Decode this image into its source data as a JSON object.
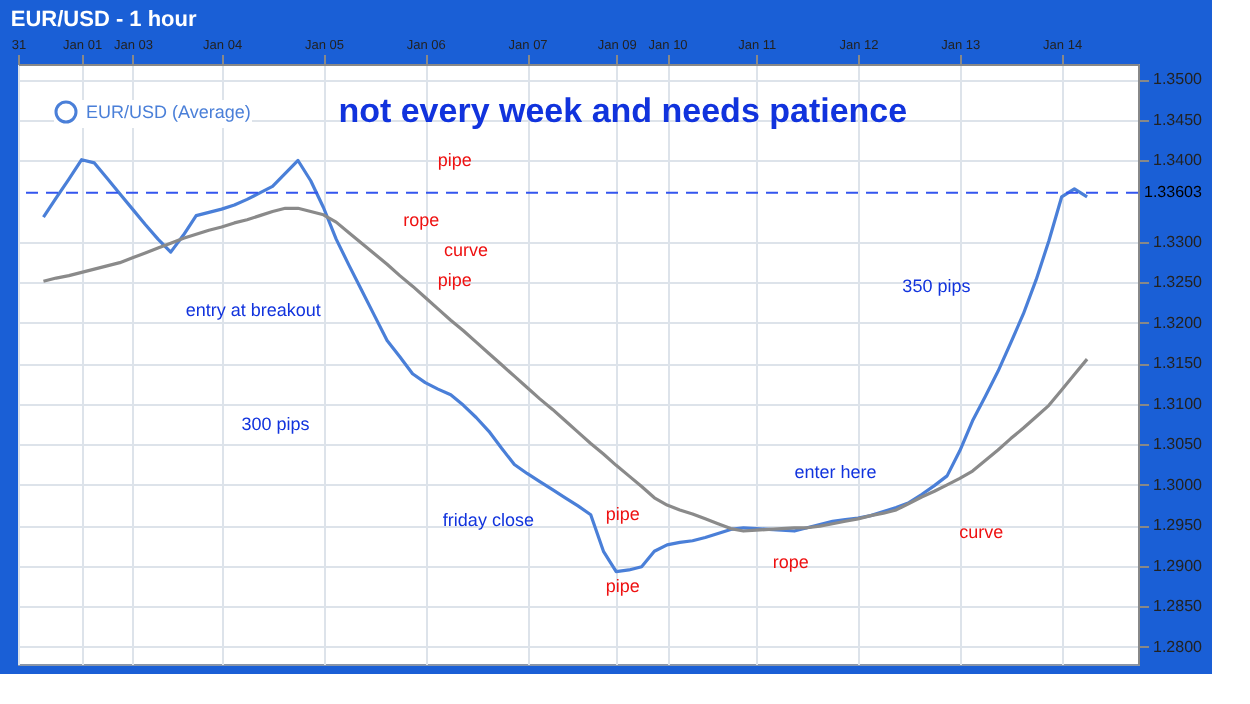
{
  "chart_data": {
    "type": "line",
    "title": "EUR/USD - 1 hour",
    "categories": [
      "31",
      null,
      null,
      null,
      null,
      "Jan 01",
      null,
      null,
      null,
      "Jan 03",
      null,
      null,
      null,
      null,
      null,
      null,
      "Jan 04",
      null,
      null,
      null,
      null,
      null,
      null,
      null,
      "Jan 05",
      null,
      null,
      null,
      null,
      null,
      null,
      null,
      "Jan 06",
      null,
      null,
      null,
      null,
      null,
      null,
      null,
      "Jan 07",
      null,
      null,
      null,
      null,
      null,
      null,
      "Jan 09",
      null,
      null,
      null,
      "Jan 10",
      null,
      null,
      null,
      null,
      null,
      null,
      "Jan 11",
      null,
      null,
      null,
      null,
      null,
      null,
      null,
      "Jan 12",
      null,
      null,
      null,
      null,
      null,
      null,
      null,
      "Jan 13",
      null,
      null,
      null,
      null,
      null,
      null,
      null,
      "Jan 14",
      null,
      null,
      null,
      null,
      null,
      null
    ],
    "series": [
      {
        "name": "EUR/USD (Average)",
        "color": "#4a7fd8",
        "values": [
          null,
          null,
          1.333,
          1.3354,
          1.3377,
          1.3401,
          1.3397,
          1.3378,
          1.3359,
          1.334,
          1.3321,
          1.3303,
          1.3287,
          1.3308,
          1.3332,
          1.3336,
          1.334,
          1.3345,
          1.3352,
          1.336,
          1.3368,
          1.3384,
          1.34,
          1.3375,
          1.3342,
          1.3303,
          1.3271,
          1.324,
          1.3209,
          1.3178,
          1.3158,
          1.3137,
          1.3126,
          1.3118,
          1.3111,
          1.3098,
          1.3083,
          1.3066,
          1.3045,
          1.3025,
          1.3014,
          1.3004,
          1.2994,
          1.2984,
          1.2974,
          1.2963,
          1.2918,
          1.2893,
          1.2895,
          1.2899,
          1.2918,
          1.2926,
          1.2929,
          1.2931,
          1.2935,
          1.294,
          1.2945,
          1.2947,
          1.2946,
          1.2945,
          1.2944,
          1.2943,
          1.2947,
          1.2951,
          1.2955,
          1.2957,
          1.2959,
          1.2962,
          1.2967,
          1.2972,
          1.2978,
          1.2988,
          1.2999,
          1.3011,
          1.3042,
          1.3079,
          1.3109,
          1.314,
          1.3175,
          1.3211,
          1.3253,
          1.3301,
          1.3355,
          1.3365,
          1.3355,
          null,
          null,
          null,
          null
        ]
      },
      {
        "color": "#8a8a8a",
        "values": [
          null,
          null,
          1.3251,
          1.3255,
          1.3258,
          1.3262,
          1.3266,
          1.327,
          1.3274,
          1.328,
          1.3286,
          1.3292,
          1.3298,
          1.3304,
          1.3309,
          1.3314,
          1.3318,
          1.3323,
          1.3327,
          1.3332,
          1.3337,
          1.3341,
          1.3341,
          1.3337,
          1.3333,
          1.3324,
          1.3311,
          1.3298,
          1.3285,
          1.3272,
          1.3258,
          1.3245,
          1.3231,
          1.3217,
          1.3203,
          1.319,
          1.3176,
          1.3162,
          1.3148,
          1.3134,
          1.312,
          1.3106,
          1.3093,
          1.3079,
          1.3065,
          1.3051,
          1.3038,
          1.3024,
          1.3011,
          1.2998,
          1.2984,
          1.2975,
          1.2969,
          1.2964,
          1.2958,
          1.2952,
          1.2946,
          1.2943,
          1.2944,
          1.2945,
          1.2946,
          1.2947,
          1.2947,
          1.2949,
          1.2952,
          1.2955,
          1.2958,
          1.2962,
          1.2965,
          1.2969,
          1.2977,
          1.2985,
          1.2992,
          1.3,
          1.3008,
          1.3017,
          1.303,
          1.3043,
          1.3057,
          1.307,
          1.3084,
          1.3098,
          1.3117,
          1.3136,
          1.3155,
          null,
          null,
          null,
          null
        ]
      }
    ],
    "ylim": [
      1.2779,
      1.3519
    ],
    "yticks": [
      {
        "value": 1.28,
        "label": "1.2800"
      },
      {
        "value": 1.285,
        "label": "1.2850"
      },
      {
        "value": 1.29,
        "label": "1.2900"
      },
      {
        "value": 1.295,
        "label": "1.2950"
      },
      {
        "value": 1.3,
        "label": "1.3000"
      },
      {
        "value": 1.305,
        "label": "1.3050"
      },
      {
        "value": 1.31,
        "label": "1.3100"
      },
      {
        "value": 1.315,
        "label": "1.3150"
      },
      {
        "value": 1.32,
        "label": "1.3200"
      },
      {
        "value": 1.325,
        "label": "1.3250"
      },
      {
        "value": 1.33,
        "label": "1.3300"
      },
      {
        "value": 1.34,
        "label": "1.3400"
      },
      {
        "value": 1.345,
        "label": "1.3450"
      },
      {
        "value": 1.35,
        "label": "1.3500"
      }
    ],
    "ref_lines": [
      {
        "axis": "y",
        "value": 1.33603,
        "label": "1.33603",
        "color": "#3355ee",
        "line_style": "dashed"
      }
    ],
    "annotations": [
      "not every week and needs patience",
      "pipe",
      "rope",
      "curve",
      "pipe",
      "entry at breakout",
      "300 pips",
      "friday close",
      "pipe",
      "pipe",
      "enter here",
      "rope",
      "curve",
      "350 pips"
    ],
    "grid": true,
    "legend": "top left",
    "marker": "none",
    "line_style": "solid"
  }
}
